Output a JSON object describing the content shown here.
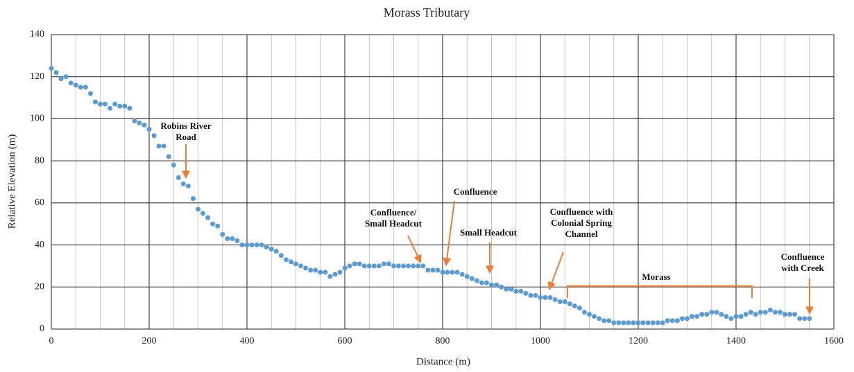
{
  "chart_data": {
    "type": "scatter",
    "title": "Morass Tributary",
    "x_label": "Distance (m)",
    "y_label": "Relative Elevation (m)",
    "color": "#5b9bd5",
    "annotation_color": "#ed7d31",
    "grid": true,
    "xlim": [
      0,
      1600
    ],
    "ylim": [
      0,
      140
    ],
    "xticks": [
      0,
      200,
      400,
      600,
      800,
      1000,
      1200,
      1400,
      1600
    ],
    "x_minor_ticks": [
      50,
      100,
      150,
      250,
      300,
      350,
      450,
      500,
      550,
      650,
      700,
      750,
      850,
      900,
      950,
      1050,
      1100,
      1150,
      1250,
      1300,
      1350,
      1450,
      1500,
      1550
    ],
    "yticks": [
      0,
      20,
      40,
      60,
      80,
      100,
      120,
      140
    ],
    "x": [
      0,
      10,
      20,
      30,
      40,
      50,
      60,
      70,
      80,
      90,
      100,
      110,
      120,
      130,
      140,
      150,
      160,
      170,
      180,
      190,
      200,
      210,
      220,
      230,
      240,
      250,
      260,
      270,
      280,
      290,
      300,
      310,
      320,
      330,
      340,
      350,
      360,
      370,
      380,
      390,
      400,
      410,
      420,
      430,
      440,
      450,
      460,
      470,
      480,
      490,
      500,
      510,
      520,
      530,
      540,
      550,
      560,
      570,
      580,
      590,
      600,
      610,
      620,
      630,
      640,
      650,
      660,
      670,
      680,
      690,
      700,
      710,
      720,
      730,
      740,
      750,
      760,
      770,
      780,
      790,
      800,
      810,
      820,
      830,
      840,
      850,
      860,
      870,
      880,
      890,
      900,
      910,
      920,
      930,
      940,
      950,
      960,
      970,
      980,
      990,
      1000,
      1010,
      1020,
      1030,
      1040,
      1050,
      1060,
      1070,
      1080,
      1090,
      1100,
      1110,
      1120,
      1130,
      1140,
      1150,
      1160,
      1170,
      1180,
      1190,
      1200,
      1210,
      1220,
      1230,
      1240,
      1250,
      1260,
      1270,
      1280,
      1290,
      1300,
      1310,
      1320,
      1330,
      1340,
      1350,
      1360,
      1370,
      1380,
      1390,
      1400,
      1410,
      1420,
      1430,
      1440,
      1450,
      1460,
      1470,
      1480,
      1490,
      1500,
      1510,
      1520,
      1530,
      1540,
      1550
    ],
    "values": [
      124,
      122,
      119,
      120,
      117,
      116,
      115,
      115,
      112,
      108,
      107,
      107,
      105,
      107,
      106,
      106,
      105,
      99,
      98,
      97,
      95,
      92,
      87,
      87,
      82,
      78,
      72,
      69,
      68,
      62,
      57,
      55,
      53,
      50,
      49,
      45,
      43,
      43,
      42,
      40,
      40,
      40,
      40,
      40,
      39,
      38,
      37,
      35,
      33,
      32,
      31,
      30,
      29,
      28,
      28,
      27,
      27,
      25,
      26,
      27,
      29,
      30,
      31,
      31,
      30,
      30,
      30,
      30,
      31,
      31,
      30,
      30,
      30,
      30,
      30,
      30,
      30,
      28,
      28,
      28,
      27,
      27,
      27,
      27,
      26,
      25,
      24,
      23,
      22,
      22,
      21,
      21,
      20,
      19,
      19,
      18,
      18,
      17,
      16,
      16,
      15,
      15,
      15,
      14,
      13,
      13,
      12,
      11,
      10,
      8,
      7,
      6,
      5,
      4,
      4,
      3,
      3,
      3,
      3,
      3,
      3,
      3,
      3,
      3,
      3,
      3,
      4,
      4,
      4,
      5,
      5,
      6,
      6,
      7,
      7,
      8,
      8,
      7,
      6,
      5,
      6,
      6,
      7,
      8,
      7,
      8,
      8,
      9,
      8,
      8,
      7,
      7,
      7,
      5,
      5,
      5
    ],
    "annotations": [
      {
        "lines": [
          "Robins River",
          "Road"
        ]
      },
      {
        "lines": [
          "Confluence/",
          "Small Headcut"
        ]
      },
      {
        "lines": [
          "Confluence"
        ]
      },
      {
        "lines": [
          "Small Headcut"
        ]
      },
      {
        "lines": [
          "Confluence with",
          "Colonial Spring",
          "Channel"
        ]
      },
      {
        "lines": [
          "Morass"
        ]
      },
      {
        "lines": [
          "Confluence",
          "with Creek"
        ]
      }
    ]
  }
}
